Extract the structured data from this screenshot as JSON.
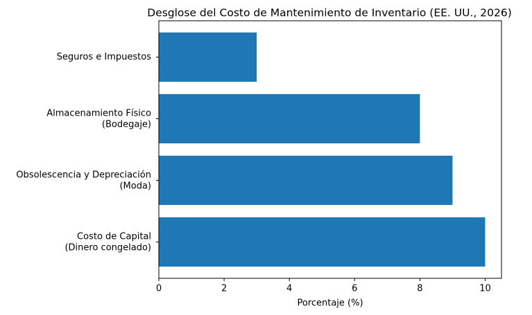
{
  "chart_data": {
    "type": "barh",
    "title": "Desglose del Costo de Mantenimiento de Inventario (EE. UU., 2026)",
    "x_label": "Porcentaje (%)",
    "categories": [
      "Costo de Capital\n(Dinero congelado)",
      "Obsolescencia y Depreciación\n(Moda)",
      "Almacenamiento Físico\n(Bodegaje)",
      "Seguros e Impuestos"
    ],
    "values": [
      10,
      9,
      8,
      3
    ],
    "color": "#1f77b4",
    "xlim": [
      0,
      10.5
    ],
    "xticks": [
      0,
      2,
      4,
      6,
      8,
      10
    ],
    "grid": false
  }
}
